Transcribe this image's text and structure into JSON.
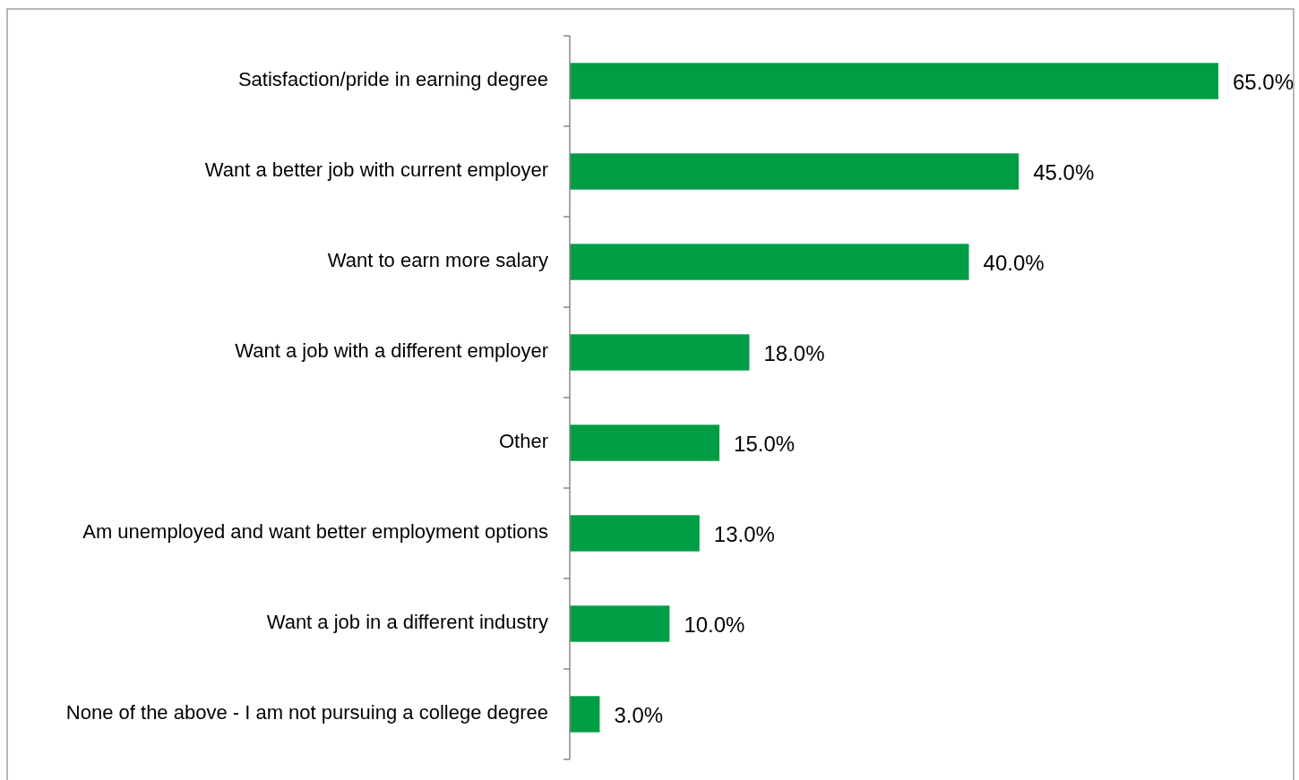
{
  "chart_data": {
    "type": "bar",
    "orientation": "horizontal",
    "categories": [
      "Satisfaction/pride in earning degree",
      "Want a better job with current employer",
      "Want to earn more salary",
      "Want a job with a different employer",
      "Other",
      "Am unemployed and want better employment options",
      "Want a job in a different industry",
      "None of the above - I am not pursuing a college degree"
    ],
    "values": [
      65,
      45,
      40,
      18,
      15,
      13,
      10,
      3
    ],
    "value_labels": [
      "65.0%",
      "45.0%",
      "40.0%",
      "18.0%",
      "15.0%",
      "13.0%",
      "10.0%",
      "3.0%"
    ],
    "color": "#009e44",
    "tick_labels": "y"
  }
}
